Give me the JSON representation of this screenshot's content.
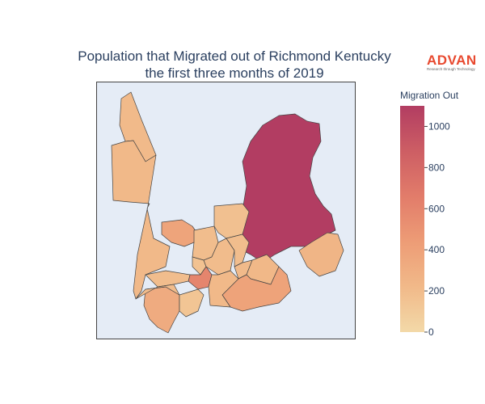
{
  "title": {
    "line1": "Population that Migrated out of Richmond Kentucky",
    "line2": "the first three months of 2019"
  },
  "logo": {
    "word": "ADVAN",
    "tagline": "Research through Technology"
  },
  "colors": {
    "map_background": "#e5ecf6",
    "region_outline": "#444444",
    "colorscale": [
      "#f3d9a8",
      "#f1b989",
      "#ed9c76",
      "#e27c6a",
      "#cd5e64",
      "#b23d62"
    ]
  },
  "chart_data": {
    "type": "choropleth",
    "title": "Population that Migrated out of Richmond Kentucky the first three months of 2019",
    "colorbar": {
      "title": "Migration Out",
      "range": [
        0,
        1100
      ],
      "ticks": [
        0,
        200,
        400,
        600,
        800,
        1000
      ],
      "tick_labels": [
        "0",
        "200",
        "400",
        "600",
        "800",
        "1000"
      ]
    },
    "regions": [
      {
        "id": "east-large",
        "value": 1100
      },
      {
        "id": "northwest-strip",
        "value": 210
      },
      {
        "id": "west-large",
        "value": 220
      },
      {
        "id": "center-west-orange",
        "value": 380
      },
      {
        "id": "center-north",
        "value": 190
      },
      {
        "id": "north-center",
        "value": 170
      },
      {
        "id": "center-a",
        "value": 160
      },
      {
        "id": "center-b",
        "value": 200
      },
      {
        "id": "center-c",
        "value": 190
      },
      {
        "id": "center-red",
        "value": 600
      },
      {
        "id": "center-small-left",
        "value": 190
      },
      {
        "id": "center-tiny",
        "value": 210
      },
      {
        "id": "center-right-peach",
        "value": 230
      },
      {
        "id": "east-strip",
        "value": 250
      },
      {
        "id": "southeast",
        "value": 390
      },
      {
        "id": "southwest-orange",
        "value": 330
      },
      {
        "id": "south-small",
        "value": 140
      },
      {
        "id": "southwest-peach",
        "value": 200
      },
      {
        "id": "center-lower",
        "value": 220
      }
    ]
  }
}
